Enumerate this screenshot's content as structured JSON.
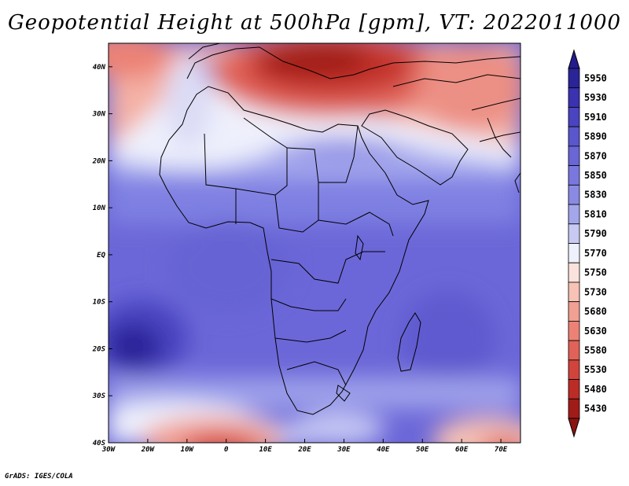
{
  "title": "Geopotential Height at 500hPa [gpm], VT: 2022011000",
  "credit": "GrADS: IGES/COLA",
  "map": {
    "lon_range": [
      -30,
      75
    ],
    "lat_range": [
      -40,
      45
    ],
    "x_ticks": [
      "30W",
      "20W",
      "10W",
      "0",
      "10E",
      "20E",
      "30E",
      "40E",
      "50E",
      "60E",
      "70E"
    ],
    "y_ticks": [
      "40N",
      "30N",
      "20N",
      "10N",
      "EQ",
      "10S",
      "20S",
      "30S",
      "40S"
    ]
  },
  "colorbar": {
    "levels": [
      "5950",
      "5930",
      "5910",
      "5890",
      "5870",
      "5850",
      "5830",
      "5810",
      "5790",
      "5770",
      "5750",
      "5730",
      "5680",
      "5630",
      "5580",
      "5530",
      "5480",
      "5430"
    ],
    "colors": [
      "#2a2498",
      "#3a32b0",
      "#4a44c0",
      "#5a56cc",
      "#6a66d6",
      "#7a78de",
      "#8a8ae4",
      "#a4a6ec",
      "#c8caf4",
      "#eef0fc",
      "#fce2dc",
      "#f8c2b6",
      "#f2a094",
      "#ec8276",
      "#e06258",
      "#d0443c",
      "#bc2c26",
      "#a01c18"
    ]
  }
}
